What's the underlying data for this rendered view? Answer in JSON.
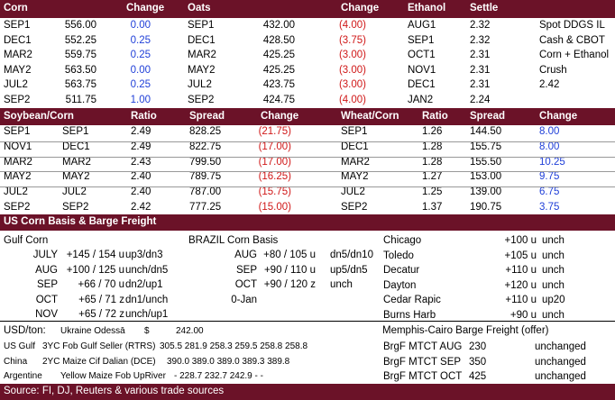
{
  "header1": [
    "Corn",
    "Change",
    "Oats",
    "Change",
    "Ethanol",
    "Settle"
  ],
  "corn": [
    {
      "m": "SEP1",
      "p": "556.00",
      "c": "0.00",
      "oats_m": "SEP1",
      "oats_p": "432.00",
      "oats_c": "(4.00)",
      "eth_m": "AUG1",
      "eth_p": "2.32",
      "note": "Spot DDGS IL",
      "note2": ""
    },
    {
      "m": "DEC1",
      "p": "552.25",
      "c": "0.25",
      "oats_m": "DEC1",
      "oats_p": "428.50",
      "oats_c": "(3.75)",
      "eth_m": "SEP1",
      "eth_p": "2.32",
      "note": "Cash & CBOT",
      "note2": ""
    },
    {
      "m": "MAR2",
      "p": "559.75",
      "c": "0.25",
      "oats_m": "MAR2",
      "oats_p": "425.25",
      "oats_c": "(3.00)",
      "eth_m": "OCT1",
      "eth_p": "2.31",
      "note": "Corn + Ethanol",
      "note2": ""
    },
    {
      "m": "MAY2",
      "p": "563.50",
      "c": "0.00",
      "oats_m": "MAY2",
      "oats_p": "425.25",
      "oats_c": "(3.00)",
      "eth_m": "NOV1",
      "eth_p": "2.31",
      "note": "Crush",
      "note2": ""
    },
    {
      "m": "JUL2",
      "p": "563.75",
      "c": "0.25",
      "oats_m": "JUL2",
      "oats_p": "423.75",
      "oats_c": "(3.00)",
      "eth_m": "DEC1",
      "eth_p": "2.31",
      "note": "",
      "note2": "2.42"
    },
    {
      "m": "SEP2",
      "p": "511.75",
      "c": "1.00",
      "oats_m": "SEP2",
      "oats_p": "424.75",
      "oats_c": "(4.00)",
      "eth_m": "JAN2",
      "eth_p": "2.24",
      "note": "",
      "note2": ""
    }
  ],
  "header2": [
    "Soybean/Corn",
    "Ratio",
    "Spread",
    "Change",
    "Wheat/Corn",
    "Ratio",
    "Spread",
    "Change"
  ],
  "spreads": [
    {
      "a": "SEP1",
      "b": "SEP1",
      "r": "2.49",
      "s": "828.25",
      "c": "(21.75)",
      "wa": "SEP1",
      "wr": "1.26",
      "ws": "144.50",
      "wc": "8.00"
    },
    {
      "a": "NOV1",
      "b": "DEC1",
      "r": "2.49",
      "s": "822.75",
      "c": "(17.00)",
      "wa": "DEC1",
      "wr": "1.28",
      "ws": "155.75",
      "wc": "8.00"
    },
    {
      "a": "MAR2",
      "b": "MAR2",
      "r": "2.43",
      "s": "799.50",
      "c": "(17.00)",
      "wa": "MAR2",
      "wr": "1.28",
      "ws": "155.50",
      "wc": "10.25"
    },
    {
      "a": "MAY2",
      "b": "MAY2",
      "r": "2.40",
      "s": "789.75",
      "c": "(16.25)",
      "wa": "MAY2",
      "wr": "1.27",
      "ws": "153.00",
      "wc": "9.75"
    },
    {
      "a": "JUL2",
      "b": "JUL2",
      "r": "2.40",
      "s": "787.00",
      "c": "(15.75)",
      "wa": "JUL2",
      "wr": "1.25",
      "ws": "139.00",
      "wc": "6.75"
    },
    {
      "a": "SEP2",
      "b": "SEP2",
      "r": "2.42",
      "s": "777.25",
      "c": "(15.00)",
      "wa": "SEP2",
      "wr": "1.37",
      "ws": "190.75",
      "wc": "3.75"
    }
  ],
  "section3": "US Corn Basis & Barge Freight",
  "gulf_title": "Gulf Corn",
  "brazil_title": "BRAZIL Corn Basis",
  "gulf": [
    {
      "m": "JULY",
      "v": "+145 / 154 u",
      "c": "up3/dn3"
    },
    {
      "m": "AUG",
      "v": "+100 / 125 u",
      "c": "unch/dn5"
    },
    {
      "m": "SEP",
      "v": "+66 / 70 u",
      "c": "dn2/up1"
    },
    {
      "m": "OCT",
      "v": "+65 / 71 z",
      "c": "dn1/unch"
    },
    {
      "m": "NOV",
      "v": "+65 / 72 z",
      "c": "unch/up1"
    }
  ],
  "brazil": [
    {
      "m": "AUG",
      "v": "+80 / 105 u",
      "c": "dn5/dn10"
    },
    {
      "m": "SEP",
      "v": "+90 / 110 u",
      "c": "up5/dn5"
    },
    {
      "m": "OCT",
      "v": "+90 / 120 z",
      "c": "unch"
    },
    {
      "m": "0-Jan",
      "v": "",
      "c": ""
    }
  ],
  "cities": [
    {
      "n": "Chicago",
      "v": "+100 u",
      "c": "unch"
    },
    {
      "n": "Toledo",
      "v": "+105 u",
      "c": "unch"
    },
    {
      "n": "Decatur",
      "v": "+110 u",
      "c": "unch"
    },
    {
      "n": "Dayton",
      "v": "+120 u",
      "c": "unch"
    },
    {
      "n": "Cedar Rapic",
      "v": "+110 u",
      "c": "up20"
    },
    {
      "n": "Burns Harb",
      "v": "+90 u",
      "c": "unch"
    }
  ],
  "usd_label": "USD/ton:",
  "ukraine": {
    "label": "Ukraine Odessā",
    "cur": "$",
    "val": "242.00"
  },
  "barge_title": "Memphis-Cairo Barge Freight (offer)",
  "origins": [
    {
      "c": "US Gulf",
      "d": "3YC Fob Gulf Seller (RTRS)",
      "v": "305.5  281.9  258.3  259.5  258.8  258.8"
    },
    {
      "c": "China",
      "d": "2YC Maize Cif Dalian (DCE)",
      "v": "390.0  389.0  389.0  389.3  389.8"
    },
    {
      "c": "Argentine",
      "d": "Yellow Maize Fob UpRiver",
      "v": "-  228.7  232.7  242.9  -  -"
    }
  ],
  "barge": [
    {
      "l": "BrgF MTCT AUG",
      "v": "230",
      "c": "unchanged"
    },
    {
      "l": "BrgF MTCT SEP",
      "v": "350",
      "c": "unchanged"
    },
    {
      "l": "BrgF MTCT OCT",
      "v": "425",
      "c": "unchanged"
    }
  ],
  "source": "Source: FI, DJ, Reuters & various trade sources"
}
